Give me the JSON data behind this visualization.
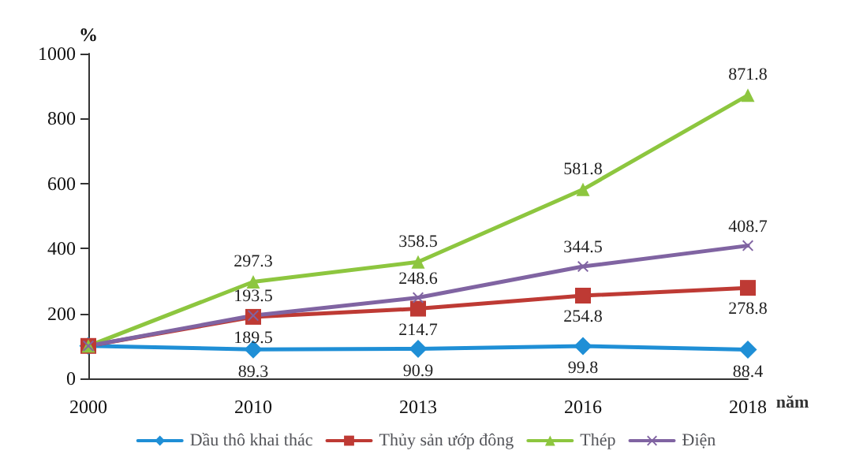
{
  "chart_data": {
    "type": "line",
    "ylabel": "%",
    "xlabel": "năm",
    "categories": [
      "2000",
      "2010",
      "2013",
      "2016",
      "2018"
    ],
    "ylim": [
      0,
      1000
    ],
    "yticks": [
      0,
      200,
      400,
      600,
      800,
      1000
    ],
    "grid": false,
    "legend": "bottom",
    "line_style": "solid",
    "series": [
      {
        "name": "Dầu thô khai thác",
        "color": "#1f8fd6",
        "marker": "diamond",
        "values": [
          100,
          89.3,
          90.9,
          99.8,
          88.4
        ],
        "value_labels": [
          null,
          "89.3",
          "90.9",
          "99.8",
          "88.4"
        ]
      },
      {
        "name": "Thủy sản ướp đông",
        "color": "#be3a34",
        "marker": "square",
        "values": [
          100,
          189.5,
          214.7,
          254.8,
          278.8
        ],
        "value_labels": [
          null,
          "189.5",
          "214.7",
          "254.8",
          "278.8"
        ]
      },
      {
        "name": "Thép",
        "color": "#8dc63f",
        "marker": "triangle",
        "values": [
          100,
          297.3,
          358.5,
          581.8,
          871.8
        ],
        "value_labels": [
          null,
          "297.3",
          "358.5",
          "581.8",
          "871.8"
        ]
      },
      {
        "name": "Điện",
        "color": "#8064a2",
        "marker": "cross",
        "values": [
          100,
          193.5,
          248.6,
          344.5,
          408.7
        ],
        "value_labels": [
          null,
          "193.5",
          "248.6",
          "344.5",
          "408.7"
        ]
      }
    ]
  }
}
